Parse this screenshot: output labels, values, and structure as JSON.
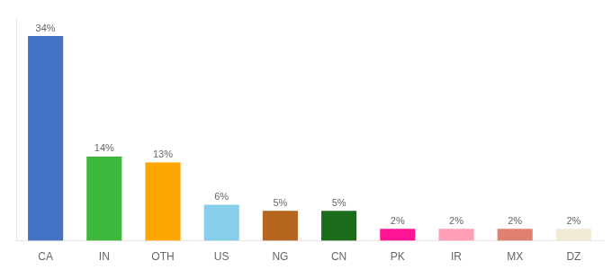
{
  "chart_data": {
    "type": "bar",
    "categories": [
      "CA",
      "IN",
      "OTH",
      "US",
      "NG",
      "CN",
      "PK",
      "IR",
      "MX",
      "DZ"
    ],
    "values": [
      34,
      14,
      13,
      6,
      5,
      5,
      2,
      2,
      2,
      2
    ],
    "value_labels": [
      "34%",
      "14%",
      "13%",
      "6%",
      "5%",
      "5%",
      "2%",
      "2%",
      "2%",
      "2%"
    ],
    "colors": [
      "#4472c4",
      "#3db83d",
      "#ffa500",
      "#87ceeb",
      "#b5651d",
      "#1a6b1a",
      "#ff1493",
      "#ff9eb5",
      "#e08070",
      "#f0ead6"
    ],
    "ylim": [
      0,
      37
    ],
    "grid": false,
    "data_labels": true,
    "tick_labels": "x"
  }
}
